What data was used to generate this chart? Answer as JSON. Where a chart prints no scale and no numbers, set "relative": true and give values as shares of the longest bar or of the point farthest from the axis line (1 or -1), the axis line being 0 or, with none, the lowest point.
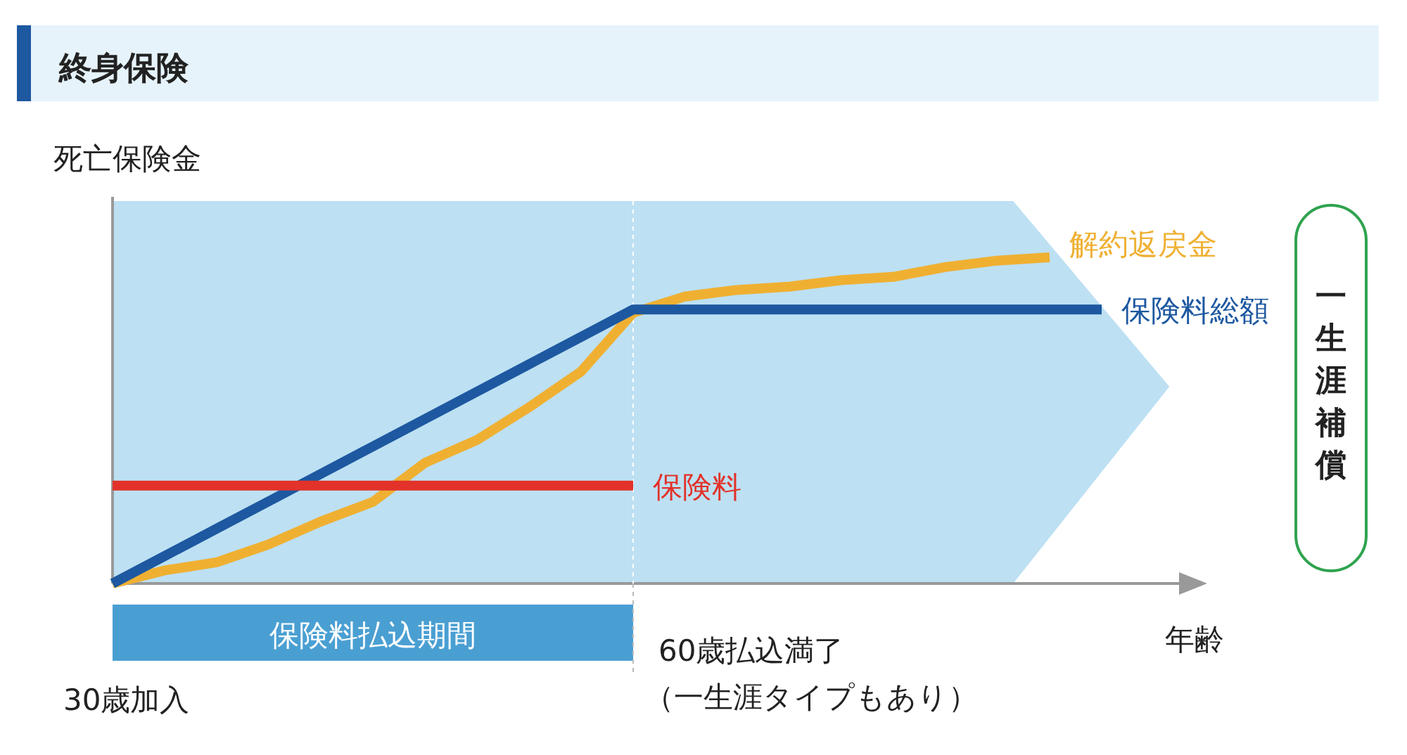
{
  "chart_data": {
    "type": "line",
    "title": "終身保険",
    "ylabel": "死亡保険金",
    "xlabel": "年齢",
    "relative": true,
    "legend": false,
    "marker": "none",
    "line_style": "solid",
    "categories": [
      null,
      null,
      null,
      null,
      null,
      null,
      null,
      null,
      null,
      null,
      null,
      null,
      null,
      null,
      null,
      null,
      null,
      null,
      null,
      null
    ],
    "series": [
      {
        "name": "解約返戻金",
        "color": "#efb032",
        "values": [
          0,
          0.04,
          0.065,
          0.12,
          0.19,
          0.25,
          0.37,
          0.44,
          0.54,
          0.65,
          0.83,
          0.88,
          0.9,
          0.91,
          0.93,
          0.94,
          0.97,
          0.99,
          1.0,
          null
        ]
      },
      {
        "name": "保険料総額",
        "color": "#1d58a0",
        "values": [
          0,
          0.084,
          0.168,
          0.252,
          0.336,
          0.42,
          0.504,
          0.588,
          0.672,
          0.756,
          0.84,
          0.84,
          0.84,
          0.84,
          0.84,
          0.84,
          0.84,
          0.84,
          0.84,
          0.84
        ]
      },
      {
        "name": "保険料",
        "color": "#e2322a",
        "values": [
          0.3,
          0.3,
          0.3,
          0.3,
          0.3,
          0.3,
          0.3,
          0.3,
          0.3,
          0.3,
          0.3,
          null,
          null,
          null,
          null,
          null,
          null,
          null,
          null,
          null
        ]
      }
    ],
    "annotations": [
      "30歳加入",
      "60歳払込満了",
      "（一生涯タイプもあり）",
      "一生涯補償",
      "保険料払込期間"
    ]
  }
}
